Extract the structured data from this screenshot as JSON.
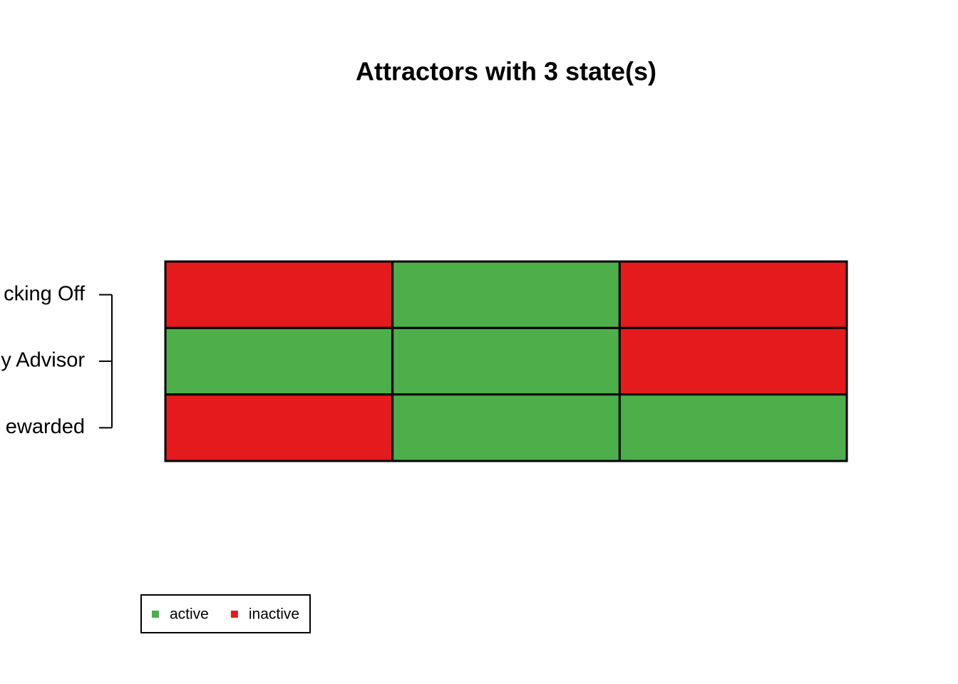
{
  "chart_data": {
    "type": "heatmap",
    "title": "Attractors with 3 state(s)",
    "rows": [
      "cking Off",
      "y Advisor",
      "ewarded"
    ],
    "values": [
      [
        0,
        1,
        0
      ],
      [
        1,
        1,
        0
      ],
      [
        0,
        1,
        1
      ]
    ],
    "legend": [
      {
        "name": "active",
        "value": 1,
        "color": "#4daf4a"
      },
      {
        "name": "inactive",
        "value": 0,
        "color": "#e41a1c"
      }
    ]
  }
}
